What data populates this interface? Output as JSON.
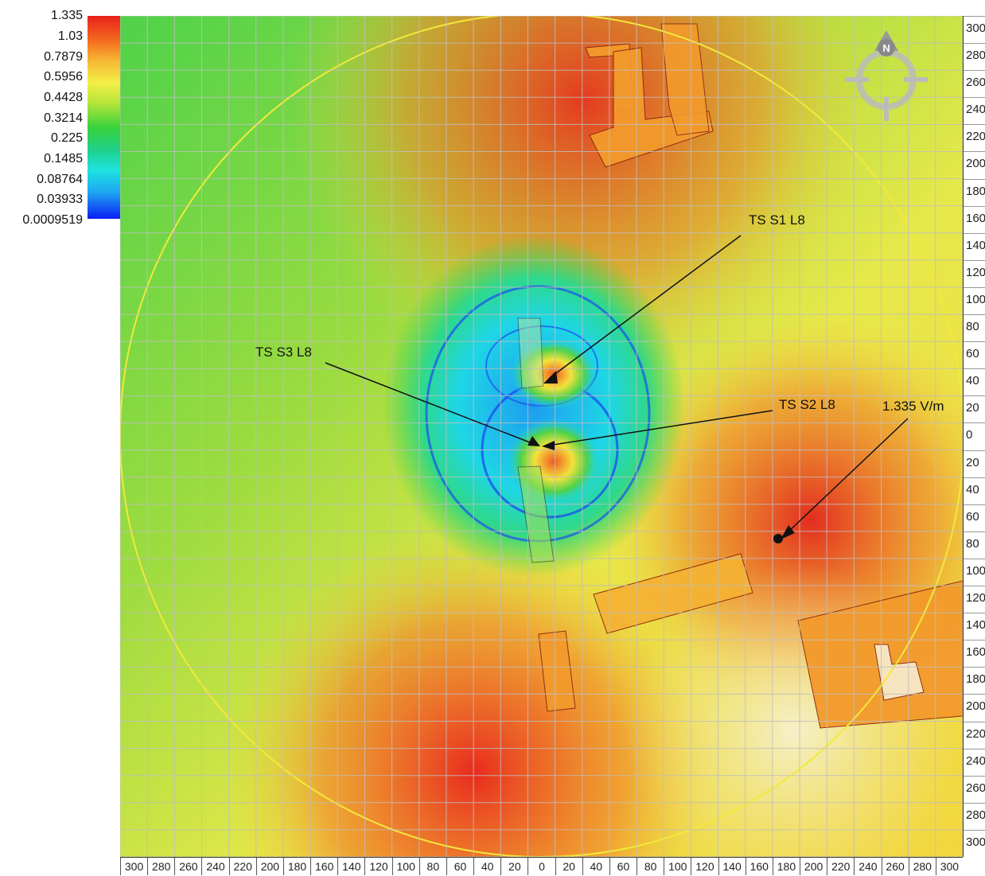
{
  "legend": {
    "labels": [
      "1.335",
      "1.03",
      "0.7879",
      "0.5956",
      "0.4428",
      "0.3214",
      "0.225",
      "0.1485",
      "0.08764",
      "0.03933",
      "0.0009519"
    ]
  },
  "annotations": {
    "s1": "TS S1 L8",
    "s2": "TS S2 L8",
    "s3": "TS S3 L8",
    "max": "1.335 V/m"
  },
  "compass": {
    "label": "N"
  },
  "ruler_right": [
    "300",
    "280",
    "260",
    "240",
    "220",
    "200",
    "180",
    "160",
    "140",
    "120",
    "100",
    "80",
    "60",
    "40",
    "20",
    "0",
    "20",
    "40",
    "60",
    "80",
    "100",
    "120",
    "140",
    "160",
    "180",
    "200",
    "220",
    "240",
    "260",
    "280",
    "300"
  ],
  "ruler_bottom": [
    "300",
    "280",
    "260",
    "240",
    "220",
    "200",
    "180",
    "160",
    "140",
    "120",
    "100",
    "80",
    "60",
    "40",
    "20",
    "0",
    "20",
    "40",
    "60",
    "80",
    "100",
    "120",
    "140",
    "160",
    "180",
    "200",
    "220",
    "240",
    "260",
    "280",
    "300"
  ],
  "colors": {
    "high": "#e8211b",
    "mid_high": "#f7b733",
    "mid": "#f3ef47",
    "mid_low": "#39d23b",
    "low_mid": "#1ee3e0",
    "low": "#0a1ef5",
    "ring": "#f2e93a",
    "building": "#f39a2c"
  }
}
